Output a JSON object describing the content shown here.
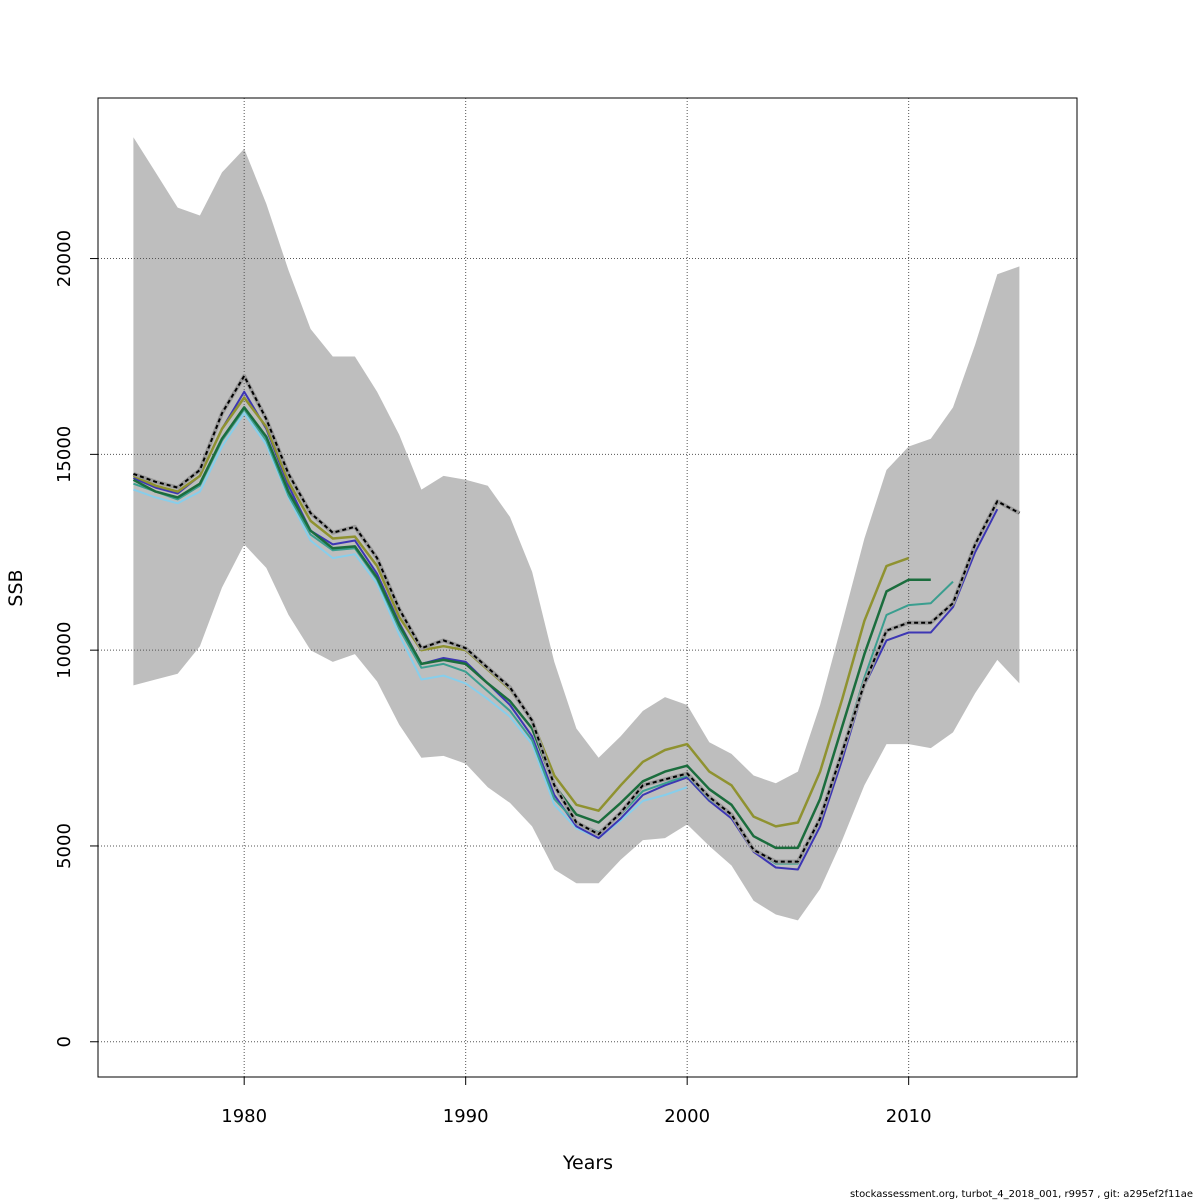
{
  "chart_data": {
    "type": "line",
    "title": "",
    "xlabel": "Years",
    "ylabel": "SSB",
    "xlim": [
      1973.4,
      2017.6
    ],
    "ylim": [
      -900,
      24100
    ],
    "xticks": [
      1980,
      1990,
      2000,
      2010
    ],
    "yticks": [
      0,
      5000,
      10000,
      15000,
      20000
    ],
    "grid": true,
    "legend": "none",
    "footer": "stockassessment.org, turbot_4_2018_001, r9957 , git: a295ef2f11ae",
    "band": {
      "color": "#bebebe",
      "years": [
        1975,
        1976,
        1977,
        1978,
        1979,
        1980,
        1981,
        1982,
        1983,
        1984,
        1985,
        1986,
        1987,
        1988,
        1989,
        1990,
        1991,
        1992,
        1993,
        1994,
        1995,
        1996,
        1997,
        1998,
        1999,
        2000,
        2001,
        2002,
        2003,
        2004,
        2005,
        2006,
        2007,
        2008,
        2009,
        2010,
        2011,
        2012,
        2013,
        2014,
        2015
      ],
      "upper": [
        23100,
        22200,
        21300,
        21100,
        22200,
        22800,
        21400,
        19700,
        18200,
        17500,
        17500,
        16600,
        15500,
        14100,
        14450,
        14350,
        14200,
        13400,
        12000,
        9700,
        8000,
        7250,
        7800,
        8450,
        8800,
        8600,
        7650,
        7350,
        6800,
        6600,
        6900,
        8600,
        10700,
        12850,
        14600,
        15200,
        15400,
        16200,
        17800,
        19600,
        19800
      ],
      "lower": [
        9100,
        9250,
        9400,
        10100,
        11600,
        12700,
        12100,
        10900,
        10000,
        9700,
        9900,
        9200,
        8100,
        7250,
        7300,
        7100,
        6500,
        6100,
        5500,
        4400,
        4050,
        4050,
        4650,
        5150,
        5200,
        5550,
        5000,
        4500,
        3600,
        3250,
        3100,
        3900,
        5150,
        6550,
        7600,
        7600,
        7500,
        7900,
        8900,
        9750,
        9150
      ]
    },
    "series": [
      {
        "color": "#87ceeb",
        "width": 2,
        "dashed": false,
        "x": [
          1975,
          1976,
          1977,
          1978,
          1979,
          1980,
          1981,
          1982,
          1983,
          1984,
          1985,
          1986,
          1987,
          1988,
          1989,
          1990,
          1991,
          1992,
          1993,
          1994,
          1995,
          1996,
          1997,
          1998,
          1999,
          2000
        ],
        "y": [
          14100,
          13900,
          13750,
          14050,
          15200,
          16050,
          15250,
          13900,
          12800,
          12350,
          12450,
          11700,
          10400,
          9250,
          9350,
          9150,
          8750,
          8300,
          7600,
          6050,
          5450,
          5200,
          5650,
          6150,
          6300,
          6500
        ]
      },
      {
        "color": "#3d36b4",
        "width": 2,
        "dashed": false,
        "x": [
          1975,
          1976,
          1977,
          1978,
          1979,
          1980,
          1981,
          1982,
          1983,
          1984,
          1985,
          1986,
          1987,
          1988,
          1989,
          1990,
          1991,
          1992,
          1993,
          1994,
          1995,
          1996,
          1997,
          1998,
          1999,
          2000,
          2001,
          2002,
          2003,
          2004,
          2005,
          2006,
          2007,
          2008,
          2009,
          2010,
          2011,
          2012,
          2013,
          2014
        ],
        "y": [
          14400,
          14150,
          14000,
          14450,
          15650,
          16600,
          15650,
          14200,
          13050,
          12700,
          12800,
          11950,
          10700,
          9650,
          9800,
          9700,
          9150,
          8600,
          7800,
          6300,
          5500,
          5200,
          5700,
          6300,
          6550,
          6750,
          6150,
          5700,
          4850,
          4450,
          4400,
          5500,
          7200,
          9100,
          10250,
          10450,
          10450,
          11100,
          12500,
          13600
        ]
      },
      {
        "color": "#3a9e8f",
        "width": 2,
        "dashed": false,
        "x": [
          1975,
          1976,
          1977,
          1978,
          1979,
          1980,
          1981,
          1982,
          1983,
          1984,
          1985,
          1986,
          1987,
          1988,
          1989,
          1990,
          1991,
          1992,
          1993,
          1994,
          1995,
          1996,
          1997,
          1998,
          1999,
          2000,
          2001,
          2002,
          2003,
          2004,
          2005,
          2006,
          2007,
          2008,
          2009,
          2010,
          2011,
          2012
        ],
        "y": [
          14250,
          14050,
          13850,
          14200,
          15350,
          16150,
          15350,
          13950,
          12950,
          12550,
          12600,
          11800,
          10550,
          9550,
          9650,
          9450,
          8950,
          8450,
          7700,
          6200,
          5600,
          5350,
          5800,
          6400,
          6600,
          6800,
          6200,
          5800,
          4900,
          4550,
          4550,
          5650,
          7450,
          9300,
          10900,
          11150,
          11200,
          11750
        ]
      },
      {
        "color": "#1b6d3d",
        "width": 2.5,
        "dashed": false,
        "x": [
          1975,
          1976,
          1977,
          1978,
          1979,
          1980,
          1981,
          1982,
          1983,
          1984,
          1985,
          1986,
          1987,
          1988,
          1989,
          1990,
          1991,
          1992,
          1993,
          1994,
          1995,
          1996,
          1997,
          1998,
          1999,
          2000,
          2001,
          2002,
          2003,
          2004,
          2005,
          2006,
          2007,
          2008,
          2009,
          2010,
          2011
        ],
        "y": [
          14350,
          14050,
          13900,
          14250,
          15400,
          16200,
          15450,
          14050,
          13050,
          12600,
          12650,
          11850,
          10650,
          9650,
          9750,
          9650,
          9150,
          8700,
          8000,
          6550,
          5800,
          5600,
          6100,
          6650,
          6900,
          7050,
          6450,
          6050,
          5250,
          4950,
          4950,
          6200,
          8050,
          9900,
          11500,
          11800,
          11800
        ]
      },
      {
        "color": "#8f9230",
        "width": 2.5,
        "dashed": false,
        "x": [
          1975,
          1976,
          1977,
          1978,
          1979,
          1980,
          1981,
          1982,
          1983,
          1984,
          1985,
          1986,
          1987,
          1988,
          1989,
          1990,
          1991,
          1992,
          1993,
          1994,
          1995,
          1996,
          1997,
          1998,
          1999,
          2000,
          2001,
          2002,
          2003,
          2004,
          2005,
          2006,
          2007,
          2008,
          2009,
          2010
        ],
        "y": [
          14450,
          14200,
          14050,
          14450,
          15650,
          16450,
          15700,
          14300,
          13300,
          12850,
          12900,
          12150,
          10850,
          10000,
          10100,
          10000,
          9500,
          9000,
          8200,
          6800,
          6050,
          5900,
          6550,
          7150,
          7450,
          7600,
          6900,
          6550,
          5750,
          5500,
          5600,
          6900,
          8750,
          10750,
          12150,
          12350
        ]
      },
      {
        "color": "#000000",
        "width": 2,
        "dashed": true,
        "x": [
          1975,
          1976,
          1977,
          1978,
          1979,
          1980,
          1981,
          1982,
          1983,
          1984,
          1985,
          1986,
          1987,
          1988,
          1989,
          1990,
          1991,
          1992,
          1993,
          1994,
          1995,
          1996,
          1997,
          1998,
          1999,
          2000,
          2001,
          2002,
          2003,
          2004,
          2005,
          2006,
          2007,
          2008,
          2009,
          2010,
          2011,
          2012,
          2013,
          2014,
          2015
        ],
        "y": [
          14500,
          14300,
          14150,
          14600,
          16050,
          17000,
          15900,
          14500,
          13500,
          13000,
          13150,
          12350,
          11050,
          10050,
          10250,
          10050,
          9550,
          9050,
          8200,
          6550,
          5600,
          5300,
          5850,
          6550,
          6700,
          6850,
          6250,
          5800,
          4900,
          4600,
          4600,
          5700,
          7400,
          9150,
          10500,
          10700,
          10700,
          11200,
          12700,
          13800,
          13500
        ]
      }
    ]
  }
}
